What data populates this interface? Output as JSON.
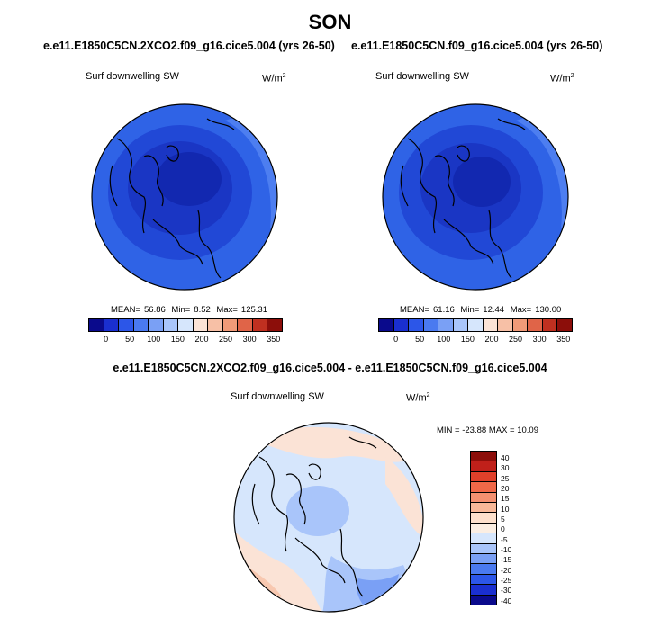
{
  "title": "SON",
  "panels": {
    "left": {
      "run": "e.e11.E1850C5CN.2XCO2.f09_g16.cice5.004 (yrs 26-50)",
      "variable": "Surf downwelling SW",
      "units": "W/m",
      "units_sup": "2",
      "mean_label": "MEAN=",
      "mean": "56.86",
      "min_label": "Min=",
      "min": "8.52",
      "max_label": "Max=",
      "max": "125.31"
    },
    "right": {
      "run": "e.e11.E1850C5CN.f09_g16.cice5.004 (yrs 26-50)",
      "variable": "Surf downwelling SW",
      "units": "W/m",
      "units_sup": "2",
      "mean_label": "MEAN=",
      "mean": "61.16",
      "min_label": "Min=",
      "min": "12.44",
      "max_label": "Max=",
      "max": "130.00"
    },
    "diff": {
      "run": "e.e11.E1850C5CN.2XCO2.f09_g16.cice5.004 - e.e11.E1850C5CN.f09_g16.cice5.004",
      "variable": "Surf downwelling SW",
      "units": "W/m",
      "units_sup": "2",
      "minmax": "MIN = -23.88 MAX =  10.09"
    }
  },
  "abs_colorbar": {
    "colors": [
      "#0a0a8c",
      "#1a2fd0",
      "#2c56e8",
      "#4a7af0",
      "#7aa0f5",
      "#a9c5fa",
      "#d6e6fc",
      "#fbe3d6",
      "#f7c0a6",
      "#f09a78",
      "#e06448",
      "#c03020",
      "#8c0e0a"
    ],
    "ticks": [
      "0",
      "50",
      "100",
      "150",
      "200",
      "250",
      "300",
      "350"
    ]
  },
  "diff_colorbar": {
    "colors": [
      "#8c0e0a",
      "#c0201a",
      "#e0402a",
      "#f06848",
      "#f49070",
      "#f8b898",
      "#fde0cc",
      "#fbeee2",
      "#d6e6fc",
      "#a9c5fa",
      "#7aa0f5",
      "#4a7af0",
      "#2c56e8",
      "#1a2fd0",
      "#0a0a8c"
    ],
    "ticks": [
      "40",
      "30",
      "25",
      "20",
      "15",
      "10",
      "5",
      "0",
      "-5",
      "-10",
      "-15",
      "-20",
      "-25",
      "-30",
      "-40"
    ]
  },
  "map_colors": {
    "abs_outer": "#2f63e6",
    "abs_mid": "#2148d6",
    "abs_inner": "#1a36c4",
    "abs_core": "#1228b0",
    "abs_rim": "#4d7ef0",
    "diff_base": "#d6e6fc",
    "diff_warm": "#fbe3d6",
    "diff_warm2": "#f8c8b0",
    "diff_cool": "#a9c5fa",
    "diff_cool2": "#7aa0f5",
    "coast": "#000000"
  }
}
